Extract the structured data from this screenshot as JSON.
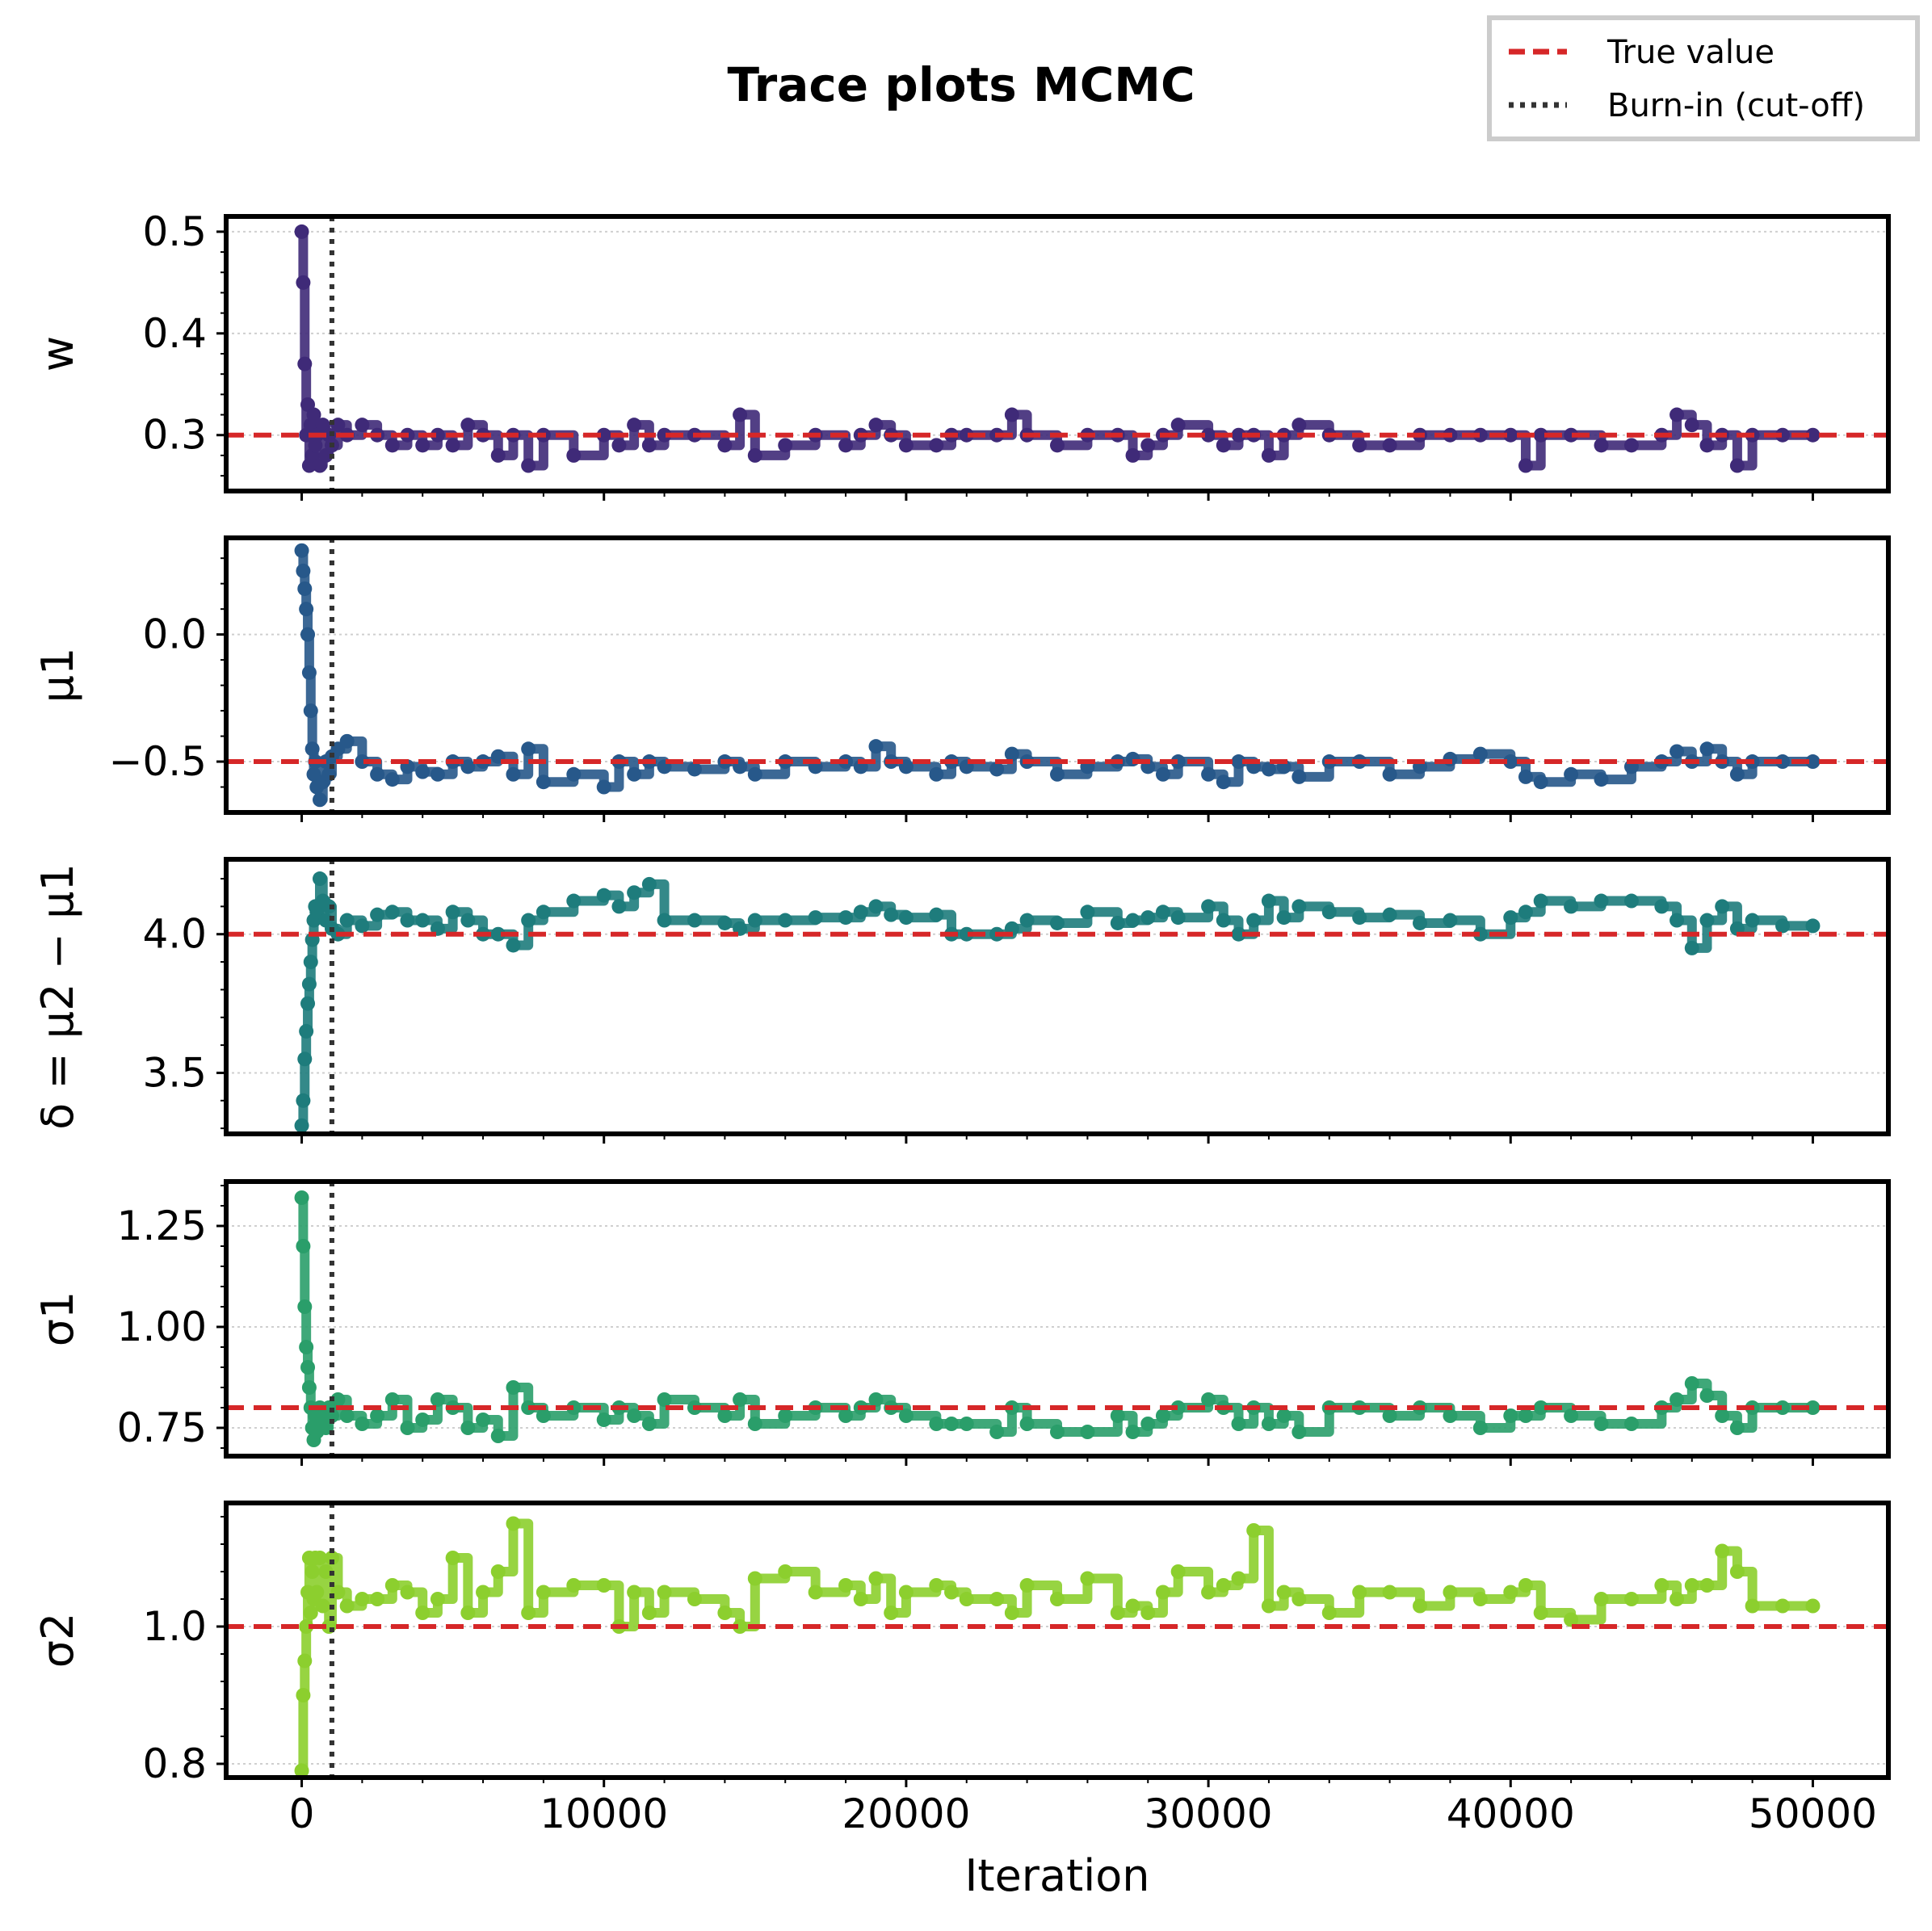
{
  "figure": {
    "title": "Trace plots MCMC",
    "legend": {
      "placement": "top-right",
      "entries": [
        {
          "label": "True value",
          "style": "dashed",
          "color": "#d62728"
        },
        {
          "label": "Burn-in (cut-off)",
          "style": "dotted",
          "color": "#333333"
        }
      ]
    }
  },
  "chart_data": [
    {
      "type": "line",
      "ylabel": "w",
      "xlabel": "",
      "color": "#3f2a78",
      "xlim": [
        -2500,
        52500
      ],
      "ylim": [
        0.245,
        0.515
      ],
      "yticks": [
        0.3,
        0.4,
        0.5
      ],
      "ytick_labels": [
        "0.3",
        "0.4",
        "0.5"
      ],
      "true_value": 0.3,
      "burn_in": 1000,
      "grid": true,
      "x": [
        0,
        50,
        100,
        150,
        200,
        250,
        300,
        350,
        400,
        450,
        500,
        600,
        700,
        800,
        900,
        1000,
        1200,
        1500,
        2000,
        2500,
        3000,
        3500,
        4000,
        4500,
        5000,
        5500,
        6000,
        6500,
        7000,
        7500,
        8000,
        9000,
        10000,
        10500,
        11000,
        11500,
        12000,
        13000,
        14000,
        14500,
        15000,
        16000,
        17000,
        18000,
        18500,
        19000,
        19500,
        20000,
        21000,
        21500,
        22000,
        23000,
        23500,
        24000,
        25000,
        26000,
        27000,
        27500,
        28000,
        28500,
        29000,
        30000,
        30500,
        31000,
        31500,
        32000,
        32500,
        33000,
        34000,
        35000,
        36000,
        37000,
        38000,
        39000,
        40000,
        40500,
        41000,
        42000,
        43000,
        44000,
        45000,
        45500,
        46000,
        46500,
        47000,
        47500,
        48000,
        49000,
        50000
      ],
      "values": [
        0.5,
        0.45,
        0.37,
        0.3,
        0.33,
        0.27,
        0.31,
        0.28,
        0.32,
        0.29,
        0.3,
        0.27,
        0.31,
        0.28,
        0.3,
        0.29,
        0.31,
        0.3,
        0.31,
        0.3,
        0.29,
        0.3,
        0.29,
        0.3,
        0.29,
        0.31,
        0.3,
        0.28,
        0.3,
        0.27,
        0.3,
        0.28,
        0.3,
        0.29,
        0.31,
        0.29,
        0.3,
        0.3,
        0.29,
        0.32,
        0.28,
        0.29,
        0.3,
        0.29,
        0.3,
        0.31,
        0.3,
        0.29,
        0.29,
        0.3,
        0.3,
        0.3,
        0.32,
        0.3,
        0.29,
        0.3,
        0.3,
        0.28,
        0.29,
        0.3,
        0.31,
        0.3,
        0.29,
        0.3,
        0.3,
        0.28,
        0.3,
        0.31,
        0.3,
        0.29,
        0.29,
        0.3,
        0.3,
        0.3,
        0.3,
        0.27,
        0.3,
        0.3,
        0.29,
        0.29,
        0.3,
        0.32,
        0.31,
        0.29,
        0.3,
        0.27,
        0.3,
        0.3,
        0.3
      ]
    },
    {
      "type": "line",
      "ylabel": "μ1",
      "xlabel": "",
      "color": "#27588a",
      "xlim": [
        -2500,
        52500
      ],
      "ylim": [
        -0.7,
        0.38
      ],
      "yticks": [
        -0.5,
        0.0
      ],
      "ytick_labels": [
        "−0.5",
        "0.0"
      ],
      "true_value": -0.5,
      "burn_in": 1000,
      "grid": true,
      "x": [
        0,
        50,
        100,
        150,
        200,
        250,
        300,
        350,
        400,
        450,
        500,
        600,
        700,
        800,
        900,
        1000,
        1200,
        1500,
        2000,
        2500,
        3000,
        3500,
        4000,
        4500,
        5000,
        5500,
        6000,
        6500,
        7000,
        7500,
        8000,
        9000,
        10000,
        10500,
        11000,
        11500,
        12000,
        13000,
        14000,
        14500,
        15000,
        16000,
        17000,
        18000,
        18500,
        19000,
        19500,
        20000,
        21000,
        21500,
        22000,
        23000,
        23500,
        24000,
        25000,
        26000,
        27000,
        27500,
        28000,
        28500,
        29000,
        30000,
        30500,
        31000,
        31500,
        32000,
        32500,
        33000,
        34000,
        35000,
        36000,
        37000,
        38000,
        39000,
        40000,
        40500,
        41000,
        42000,
        43000,
        44000,
        45000,
        45500,
        46000,
        46500,
        47000,
        47500,
        48000,
        49000,
        50000
      ],
      "values": [
        0.33,
        0.25,
        0.18,
        0.1,
        0.0,
        -0.15,
        -0.3,
        -0.45,
        -0.55,
        -0.5,
        -0.6,
        -0.65,
        -0.58,
        -0.5,
        -0.55,
        -0.48,
        -0.45,
        -0.42,
        -0.5,
        -0.55,
        -0.57,
        -0.52,
        -0.54,
        -0.55,
        -0.5,
        -0.52,
        -0.5,
        -0.48,
        -0.55,
        -0.45,
        -0.58,
        -0.55,
        -0.6,
        -0.5,
        -0.55,
        -0.5,
        -0.52,
        -0.53,
        -0.5,
        -0.52,
        -0.55,
        -0.5,
        -0.52,
        -0.5,
        -0.52,
        -0.44,
        -0.5,
        -0.52,
        -0.55,
        -0.5,
        -0.52,
        -0.53,
        -0.47,
        -0.5,
        -0.55,
        -0.52,
        -0.5,
        -0.49,
        -0.52,
        -0.55,
        -0.5,
        -0.55,
        -0.58,
        -0.5,
        -0.52,
        -0.53,
        -0.52,
        -0.56,
        -0.5,
        -0.5,
        -0.55,
        -0.52,
        -0.49,
        -0.47,
        -0.5,
        -0.56,
        -0.58,
        -0.55,
        -0.57,
        -0.52,
        -0.5,
        -0.46,
        -0.5,
        -0.45,
        -0.5,
        -0.55,
        -0.5,
        -0.5,
        -0.5
      ]
    },
    {
      "type": "line",
      "ylabel": "δ = μ2 − μ1",
      "xlabel": "",
      "color": "#1e7c7c",
      "xlim": [
        -2500,
        52500
      ],
      "ylim": [
        3.28,
        4.27
      ],
      "yticks": [
        3.5,
        4.0
      ],
      "ytick_labels": [
        "3.5",
        "4.0"
      ],
      "true_value": 4.0,
      "burn_in": 1000,
      "grid": true,
      "x": [
        0,
        50,
        100,
        150,
        200,
        250,
        300,
        350,
        400,
        450,
        500,
        600,
        700,
        800,
        900,
        1000,
        1200,
        1500,
        2000,
        2500,
        3000,
        3500,
        4000,
        4500,
        5000,
        5500,
        6000,
        6500,
        7000,
        7500,
        8000,
        9000,
        10000,
        10500,
        11000,
        11500,
        12000,
        13000,
        14000,
        14500,
        15000,
        16000,
        17000,
        18000,
        18500,
        19000,
        19500,
        20000,
        21000,
        21500,
        22000,
        23000,
        23500,
        24000,
        25000,
        26000,
        27000,
        27500,
        28000,
        28500,
        29000,
        30000,
        30500,
        31000,
        31500,
        32000,
        32500,
        33000,
        34000,
        35000,
        36000,
        37000,
        38000,
        39000,
        40000,
        40500,
        41000,
        42000,
        43000,
        44000,
        45000,
        45500,
        46000,
        46500,
        47000,
        47500,
        48000,
        49000,
        50000
      ],
      "values": [
        3.31,
        3.4,
        3.55,
        3.65,
        3.75,
        3.82,
        3.9,
        3.98,
        4.05,
        4.1,
        4.08,
        4.2,
        4.12,
        4.05,
        4.1,
        4.02,
        4.0,
        4.05,
        4.03,
        4.07,
        4.08,
        4.05,
        4.05,
        4.02,
        4.08,
        4.05,
        4.0,
        4.0,
        3.96,
        4.05,
        4.08,
        4.12,
        4.14,
        4.1,
        4.15,
        4.18,
        4.05,
        4.05,
        4.04,
        4.02,
        4.05,
        4.05,
        4.06,
        4.06,
        4.08,
        4.1,
        4.07,
        4.06,
        4.07,
        4.0,
        4.0,
        4.0,
        4.02,
        4.05,
        4.04,
        4.08,
        4.04,
        4.05,
        4.06,
        4.08,
        4.06,
        4.1,
        4.05,
        4.0,
        4.05,
        4.12,
        4.06,
        4.1,
        4.08,
        4.06,
        4.07,
        4.04,
        4.05,
        4.0,
        4.06,
        4.08,
        4.12,
        4.1,
        4.12,
        4.12,
        4.1,
        4.05,
        3.95,
        4.05,
        4.1,
        4.02,
        4.05,
        4.03,
        4.03
      ]
    },
    {
      "type": "line",
      "ylabel": "σ1",
      "xlabel": "",
      "color": "#2a9e6a",
      "xlim": [
        -2500,
        52500
      ],
      "ylim": [
        0.68,
        1.36
      ],
      "yticks": [
        0.75,
        1.0,
        1.25
      ],
      "ytick_labels": [
        "0.75",
        "1.00",
        "1.25"
      ],
      "true_value": 0.8,
      "burn_in": 1000,
      "grid": true,
      "x": [
        0,
        50,
        100,
        150,
        200,
        250,
        300,
        350,
        400,
        450,
        500,
        600,
        700,
        800,
        900,
        1000,
        1200,
        1500,
        2000,
        2500,
        3000,
        3500,
        4000,
        4500,
        5000,
        5500,
        6000,
        6500,
        7000,
        7500,
        8000,
        9000,
        10000,
        10500,
        11000,
        11500,
        12000,
        13000,
        14000,
        14500,
        15000,
        16000,
        17000,
        18000,
        18500,
        19000,
        19500,
        20000,
        21000,
        21500,
        22000,
        23000,
        23500,
        24000,
        25000,
        26000,
        27000,
        27500,
        28000,
        28500,
        29000,
        30000,
        30500,
        31000,
        31500,
        32000,
        32500,
        33000,
        34000,
        35000,
        36000,
        37000,
        38000,
        39000,
        40000,
        40500,
        41000,
        42000,
        43000,
        44000,
        45000,
        45500,
        46000,
        46500,
        47000,
        47500,
        48000,
        49000,
        50000
      ],
      "values": [
        1.32,
        1.2,
        1.05,
        0.95,
        0.9,
        0.85,
        0.8,
        0.75,
        0.72,
        0.78,
        0.74,
        0.8,
        0.77,
        0.75,
        0.8,
        0.78,
        0.82,
        0.78,
        0.76,
        0.78,
        0.82,
        0.75,
        0.77,
        0.82,
        0.8,
        0.75,
        0.77,
        0.73,
        0.85,
        0.8,
        0.78,
        0.8,
        0.77,
        0.8,
        0.78,
        0.76,
        0.82,
        0.8,
        0.78,
        0.82,
        0.76,
        0.78,
        0.8,
        0.78,
        0.8,
        0.82,
        0.8,
        0.78,
        0.76,
        0.76,
        0.76,
        0.74,
        0.8,
        0.76,
        0.74,
        0.74,
        0.78,
        0.74,
        0.76,
        0.78,
        0.8,
        0.82,
        0.8,
        0.76,
        0.8,
        0.76,
        0.78,
        0.74,
        0.8,
        0.8,
        0.78,
        0.8,
        0.78,
        0.75,
        0.78,
        0.78,
        0.8,
        0.78,
        0.76,
        0.76,
        0.8,
        0.82,
        0.86,
        0.83,
        0.78,
        0.75,
        0.8,
        0.8,
        0.8
      ]
    },
    {
      "type": "line",
      "ylabel": "σ2",
      "xlabel": "Iteration",
      "color": "#8ccf2e",
      "xlim": [
        -2500,
        52500
      ],
      "ylim": [
        0.78,
        1.18
      ],
      "yticks": [
        0.8,
        1.0
      ],
      "ytick_labels": [
        "0.8",
        "1.0"
      ],
      "xticks": [
        0,
        10000,
        20000,
        30000,
        40000,
        50000
      ],
      "xtick_labels": [
        "0",
        "10000",
        "20000",
        "30000",
        "40000",
        "50000"
      ],
      "true_value": 1.0,
      "burn_in": 1000,
      "grid": true,
      "x": [
        0,
        50,
        100,
        150,
        200,
        250,
        300,
        350,
        400,
        450,
        500,
        600,
        700,
        800,
        900,
        1000,
        1200,
        1500,
        2000,
        2500,
        3000,
        3500,
        4000,
        4500,
        5000,
        5500,
        6000,
        6500,
        7000,
        7500,
        8000,
        9000,
        10000,
        10500,
        11000,
        11500,
        12000,
        13000,
        14000,
        14500,
        15000,
        16000,
        17000,
        18000,
        18500,
        19000,
        19500,
        20000,
        21000,
        21500,
        22000,
        23000,
        23500,
        24000,
        25000,
        26000,
        27000,
        27500,
        28000,
        28500,
        29000,
        30000,
        30500,
        31000,
        31500,
        32000,
        32500,
        33000,
        34000,
        35000,
        36000,
        37000,
        38000,
        39000,
        40000,
        40500,
        41000,
        42000,
        43000,
        44000,
        45000,
        45500,
        46000,
        46500,
        47000,
        47500,
        48000,
        49000,
        50000
      ],
      "values": [
        0.79,
        0.9,
        0.95,
        1.0,
        1.05,
        1.1,
        1.02,
        1.08,
        1.04,
        1.1,
        1.05,
        1.1,
        1.03,
        1.08,
        1.0,
        1.1,
        1.05,
        1.03,
        1.04,
        1.04,
        1.06,
        1.05,
        1.02,
        1.04,
        1.1,
        1.02,
        1.05,
        1.08,
        1.15,
        1.02,
        1.05,
        1.06,
        1.06,
        1.0,
        1.05,
        1.02,
        1.05,
        1.04,
        1.02,
        1.0,
        1.07,
        1.08,
        1.05,
        1.06,
        1.04,
        1.07,
        1.02,
        1.05,
        1.06,
        1.05,
        1.04,
        1.04,
        1.02,
        1.06,
        1.04,
        1.07,
        1.02,
        1.03,
        1.02,
        1.05,
        1.08,
        1.05,
        1.06,
        1.07,
        1.14,
        1.03,
        1.05,
        1.04,
        1.02,
        1.05,
        1.05,
        1.03,
        1.05,
        1.04,
        1.05,
        1.06,
        1.02,
        1.01,
        1.04,
        1.04,
        1.06,
        1.04,
        1.06,
        1.06,
        1.11,
        1.08,
        1.03,
        1.03,
        1.03
      ]
    }
  ]
}
